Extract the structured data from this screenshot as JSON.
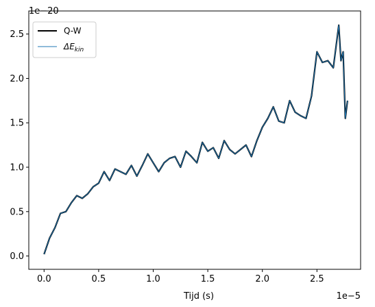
{
  "chart_data": {
    "type": "line",
    "xlabel": "Tijd (s)",
    "ylabel": "",
    "x_offset_label": "1e−5",
    "y_offset_label": "1e−20",
    "xlim": [
      -0.14,
      2.9
    ],
    "ylim": [
      -0.15,
      2.76
    ],
    "x_ticks": [
      0.0,
      0.5,
      1.0,
      1.5,
      2.0,
      2.5
    ],
    "x_tick_labels": [
      "0.0",
      "0.5",
      "1.0",
      "1.5",
      "2.0",
      "2.5"
    ],
    "y_ticks": [
      0.0,
      0.5,
      1.0,
      1.5,
      2.0,
      2.5
    ],
    "y_tick_labels": [
      "0.0",
      "0.5",
      "1.0",
      "1.5",
      "2.0",
      "2.5"
    ],
    "grid": false,
    "legend_position": "top-left",
    "legend_labels": {
      "qw": "Q-W",
      "ekin_base": "ΔE",
      "ekin_sub": "kin"
    },
    "series": [
      {
        "name": "Q-W",
        "color": "#000000",
        "x": [
          0.0,
          0.05,
          0.1,
          0.15,
          0.2,
          0.25,
          0.3,
          0.35,
          0.4,
          0.45,
          0.5,
          0.55,
          0.6,
          0.65,
          0.7,
          0.75,
          0.8,
          0.85,
          0.9,
          0.95,
          1.0,
          1.05,
          1.1,
          1.15,
          1.2,
          1.25,
          1.3,
          1.35,
          1.4,
          1.45,
          1.5,
          1.55,
          1.6,
          1.65,
          1.7,
          1.75,
          1.8,
          1.85,
          1.9,
          1.95,
          2.0,
          2.05,
          2.1,
          2.15,
          2.2,
          2.25,
          2.3,
          2.35,
          2.4,
          2.45,
          2.5,
          2.55,
          2.6,
          2.65,
          2.7,
          2.72,
          2.74,
          2.76,
          2.78
        ],
        "y": [
          0.02,
          0.2,
          0.32,
          0.48,
          0.5,
          0.6,
          0.68,
          0.65,
          0.7,
          0.78,
          0.82,
          0.95,
          0.85,
          0.98,
          0.95,
          0.92,
          1.02,
          0.9,
          1.02,
          1.15,
          1.05,
          0.95,
          1.05,
          1.1,
          1.12,
          1.0,
          1.18,
          1.12,
          1.05,
          1.28,
          1.18,
          1.22,
          1.1,
          1.3,
          1.2,
          1.15,
          1.2,
          1.25,
          1.12,
          1.3,
          1.45,
          1.55,
          1.68,
          1.52,
          1.5,
          1.75,
          1.62,
          1.58,
          1.55,
          1.8,
          2.3,
          2.18,
          2.2,
          2.12,
          2.6,
          2.2,
          2.3,
          1.55,
          1.75
        ]
      },
      {
        "name": "ΔEkin",
        "color": "#1f77b4",
        "x": [
          0.0,
          0.05,
          0.1,
          0.15,
          0.2,
          0.25,
          0.3,
          0.35,
          0.4,
          0.45,
          0.5,
          0.55,
          0.6,
          0.65,
          0.7,
          0.75,
          0.8,
          0.85,
          0.9,
          0.95,
          1.0,
          1.05,
          1.1,
          1.15,
          1.2,
          1.25,
          1.3,
          1.35,
          1.4,
          1.45,
          1.5,
          1.55,
          1.6,
          1.65,
          1.7,
          1.75,
          1.8,
          1.85,
          1.9,
          1.95,
          2.0,
          2.05,
          2.1,
          2.15,
          2.2,
          2.25,
          2.3,
          2.35,
          2.4,
          2.45,
          2.5,
          2.55,
          2.6,
          2.65,
          2.7,
          2.72,
          2.74,
          2.76,
          2.78
        ],
        "y": [
          0.02,
          0.2,
          0.32,
          0.48,
          0.5,
          0.6,
          0.68,
          0.65,
          0.7,
          0.78,
          0.82,
          0.95,
          0.85,
          0.98,
          0.95,
          0.92,
          1.02,
          0.9,
          1.02,
          1.15,
          1.05,
          0.95,
          1.05,
          1.1,
          1.12,
          1.0,
          1.18,
          1.12,
          1.05,
          1.28,
          1.18,
          1.22,
          1.1,
          1.3,
          1.2,
          1.15,
          1.2,
          1.25,
          1.12,
          1.3,
          1.45,
          1.55,
          1.68,
          1.52,
          1.5,
          1.75,
          1.62,
          1.58,
          1.55,
          1.8,
          2.3,
          2.18,
          2.2,
          2.12,
          2.6,
          2.2,
          2.3,
          1.55,
          1.75
        ]
      }
    ]
  }
}
